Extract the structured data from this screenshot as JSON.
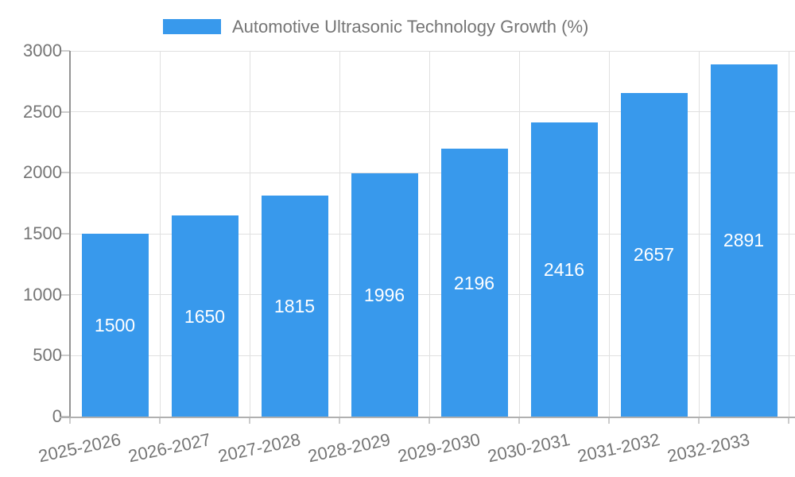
{
  "legend": {
    "label": "Automotive Ultrasonic Technology Growth (%)",
    "swatch_color": "#3899ec"
  },
  "chart_data": {
    "type": "bar",
    "title": "Automotive Ultrasonic Technology Growth (%)",
    "categories": [
      "2025-2026",
      "2026-2027",
      "2027-2028",
      "2028-2029",
      "2029-2030",
      "2030-2031",
      "2031-2032",
      "2032-2033"
    ],
    "values": [
      1500,
      1650,
      1815,
      1996,
      2196,
      2416,
      2657,
      2891
    ],
    "xlabel": "",
    "ylabel": "",
    "ylim": [
      0,
      3000
    ],
    "yticks": [
      0,
      500,
      1000,
      1500,
      2000,
      2500,
      3000
    ],
    "grid": true,
    "legend_position": "top-center",
    "bar_color": "#3899ec",
    "value_label_color": "#ffffff",
    "value_label_position": "inside-center",
    "axis_label_color": "#757575",
    "gridline_color": "#e0e0e0",
    "x_label_rotation_deg": -12
  }
}
